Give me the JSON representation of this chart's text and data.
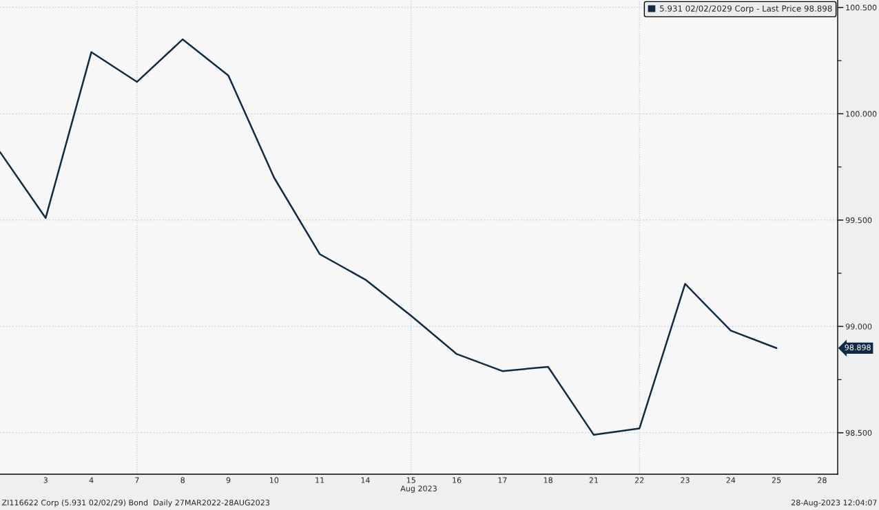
{
  "chart_data": {
    "type": "line",
    "xlabel": "Aug 2023",
    "categories": [
      null,
      "3",
      "4",
      "7",
      "8",
      "9",
      "10",
      "11",
      "14",
      "15",
      "16",
      "17",
      "18",
      "21",
      "22",
      "23",
      "24",
      "25",
      "28"
    ],
    "series": [
      {
        "name": "5.931 02/02/2029 Corp - Last Price 98.898",
        "color": "#0f2a45",
        "values": [
          99.82,
          99.51,
          100.29,
          100.15,
          100.35,
          100.18,
          99.7,
          99.34,
          99.22,
          99.05,
          98.87,
          98.79,
          98.81,
          98.49,
          98.52,
          99.2,
          98.98,
          98.898,
          null
        ]
      }
    ],
    "ylim": [
      98.305,
      100.535
    ],
    "yticks": [
      {
        "value": 98.5,
        "label": "98.500"
      },
      {
        "value": 98.75,
        "label": null
      },
      {
        "value": 99,
        "label": "99.000"
      },
      {
        "value": 99.25,
        "label": null
      },
      {
        "value": 99.5,
        "label": "99.500"
      },
      {
        "value": 99.75,
        "label": null
      },
      {
        "value": 100,
        "label": "100.000"
      },
      {
        "value": 100.25,
        "label": null
      },
      {
        "value": 100.5,
        "label": "100.500"
      }
    ],
    "grid": "y",
    "legend": "top right",
    "marker": "none",
    "line_style": "solid",
    "ref_lines": [
      {
        "axis": "x",
        "value": "7",
        "color": "#c5cad8",
        "line_style": "dotted"
      },
      {
        "axis": "x",
        "value": "15",
        "color": "#c5cad8",
        "line_style": "dotted"
      },
      {
        "axis": "x",
        "value": "22",
        "color": "#c5cad8",
        "line_style": "dotted"
      }
    ],
    "annotations": [
      "98.898",
      "ZI116622 Corp (5.931 02/02/29) Bond  Daily 27MAR2022-28AUG2023",
      "28-Aug-2023 12:04:07"
    ]
  }
}
